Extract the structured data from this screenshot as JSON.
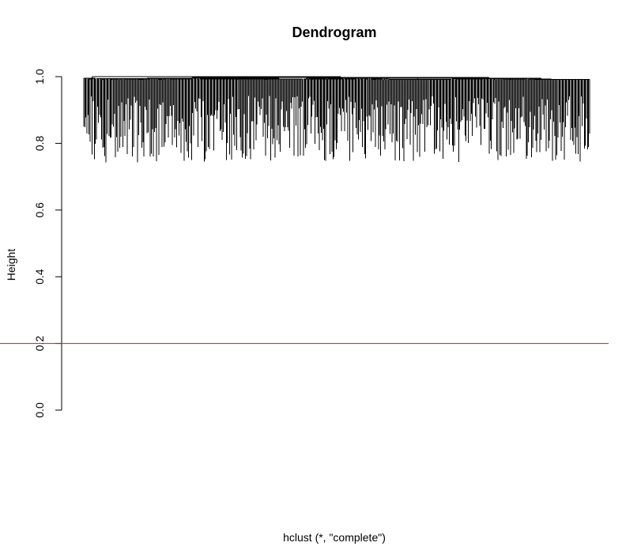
{
  "chart_data": {
    "type": "dendrogram",
    "title": "Dendrogram",
    "ylabel": "Height",
    "sub_label": "hclust (*, \"complete\")",
    "ylim": [
      0,
      1
    ],
    "y_ticks": [
      "0.0",
      "0.2",
      "0.4",
      "0.6",
      "0.8",
      "1.0"
    ],
    "cut_line": {
      "height": 0.2,
      "color": "#b22222"
    },
    "branch_color": "#000000",
    "leaf_count": 480,
    "method": "complete",
    "grid": false,
    "legend": "none"
  }
}
